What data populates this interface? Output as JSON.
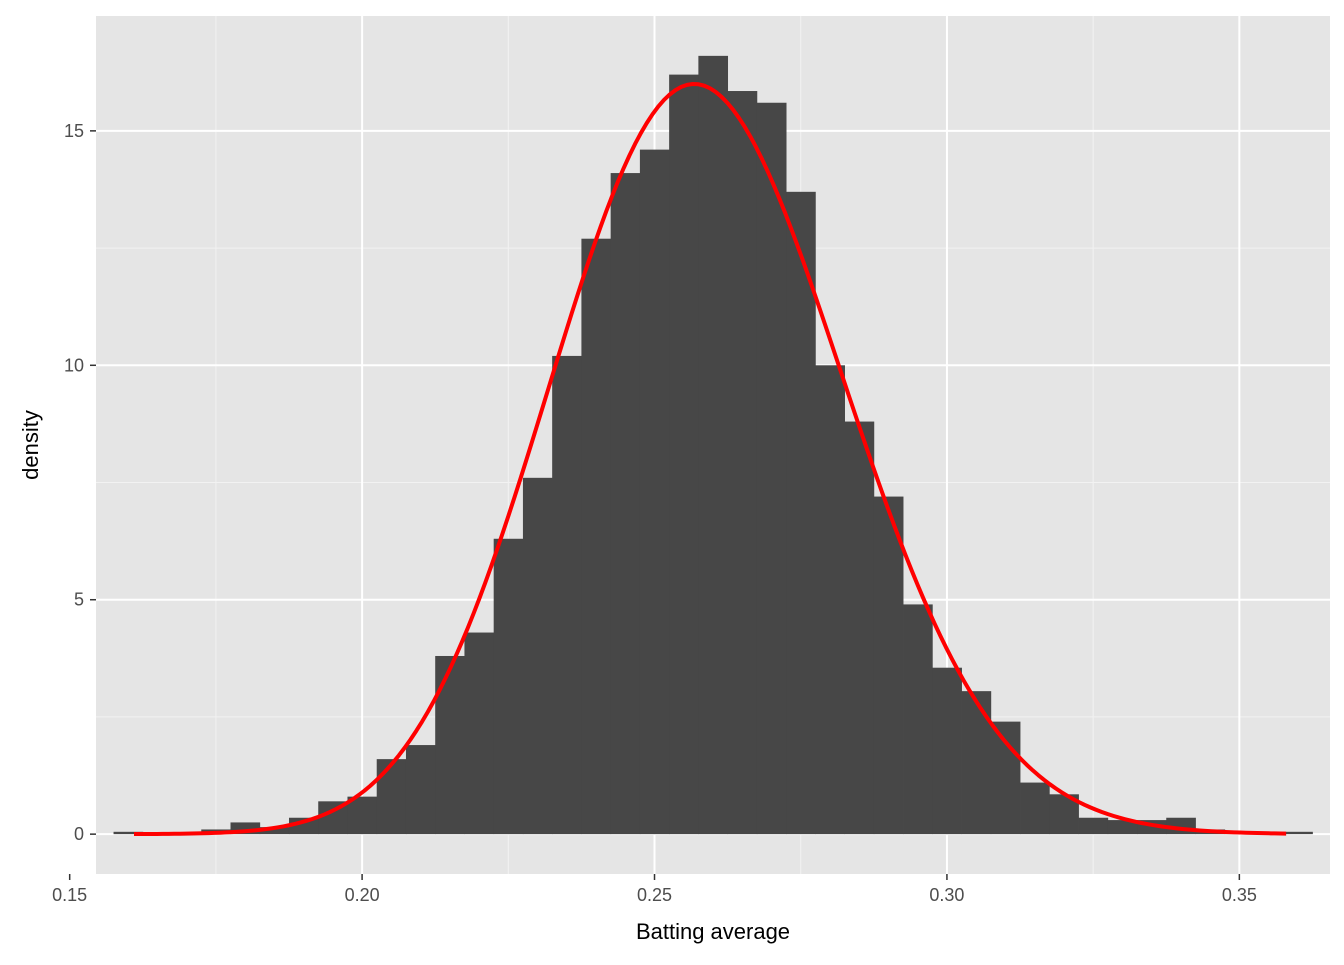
{
  "chart_data": {
    "type": "bar",
    "subtype": "histogram-with-density-curve",
    "title": "",
    "xlabel": "Batting average",
    "ylabel": "density",
    "xlim": [
      0.1545,
      0.3655
    ],
    "ylim": [
      -0.85,
      17.45
    ],
    "x_ticks": [
      0.15,
      0.2,
      0.25,
      0.3,
      0.35
    ],
    "x_tick_labels": [
      "0.15",
      "0.20",
      "0.25",
      "0.30",
      "0.35"
    ],
    "y_ticks": [
      0,
      5,
      10,
      15
    ],
    "y_tick_labels": [
      "0",
      "5",
      "10",
      "15"
    ],
    "grid": true,
    "legend": "none",
    "colors": {
      "panel_background": "#e5e5e5",
      "grid_major": "#ffffff",
      "grid_minor": "#f2f2f2",
      "bar_fill": "#474747",
      "curve": "#ff0000",
      "tick_mark": "#333333"
    },
    "bins": {
      "start": 0.1575,
      "width": 0.005,
      "values": [
        0.05,
        0.0,
        0.0,
        0.1,
        0.25,
        0.15,
        0.35,
        0.7,
        0.8,
        1.6,
        1.9,
        3.8,
        4.3,
        6.3,
        7.6,
        10.2,
        12.7,
        14.1,
        14.6,
        16.2,
        16.6,
        15.85,
        15.6,
        13.7,
        10.0,
        8.8,
        7.2,
        4.9,
        3.55,
        3.05,
        2.4,
        1.1,
        0.85,
        0.35,
        0.3,
        0.3,
        0.35,
        0.1,
        0.05,
        0.05,
        0.05
      ]
    },
    "density_curve": {
      "distribution": "beta",
      "alpha": 79.5,
      "beta": 228.2,
      "x_range": [
        0.161,
        0.358
      ],
      "points": 200
    }
  }
}
